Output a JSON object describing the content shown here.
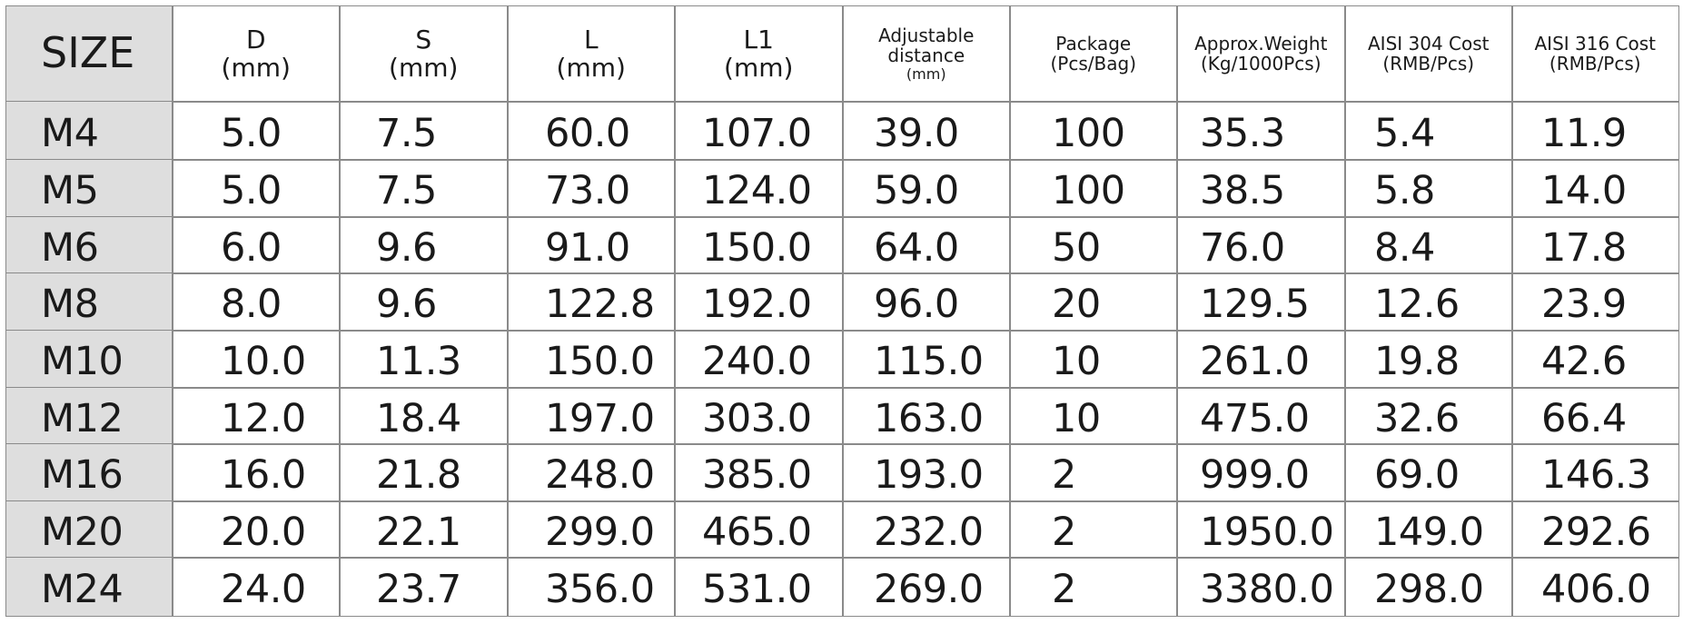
{
  "table": {
    "header": [
      [
        "SIZE"
      ],
      [
        "D",
        "(mm)"
      ],
      [
        "S",
        "(mm)"
      ],
      [
        "L",
        "(mm)"
      ],
      [
        "L1",
        "(mm)"
      ],
      [
        "Adjustable",
        "distance",
        "(mm)"
      ],
      [
        "Package",
        "(Pcs/Bag)"
      ],
      [
        "Approx.Weight",
        "(Kg/1000Pcs)"
      ],
      [
        "AISI 304 Cost",
        "(RMB/Pcs)"
      ],
      [
        "AISI 316 Cost",
        "(RMB/Pcs)"
      ]
    ],
    "rows": [
      [
        "M4",
        "5.0",
        "7.5",
        "60.0",
        "107.0",
        "39.0",
        "100",
        "35.3",
        "5.4",
        "11.9"
      ],
      [
        "M5",
        "5.0",
        "7.5",
        "73.0",
        "124.0",
        "59.0",
        "100",
        "38.5",
        "5.8",
        "14.0"
      ],
      [
        "M6",
        "6.0",
        "9.6",
        "91.0",
        "150.0",
        "64.0",
        "50",
        "76.0",
        "8.4",
        "17.8"
      ],
      [
        "M8",
        "8.0",
        "9.6",
        "122.8",
        "192.0",
        "96.0",
        "20",
        "129.5",
        "12.6",
        "23.9"
      ],
      [
        "M10",
        "10.0",
        "11.3",
        "150.0",
        "240.0",
        "115.0",
        "10",
        "261.0",
        "19.8",
        "42.6"
      ],
      [
        "M12",
        "12.0",
        "18.4",
        "197.0",
        "303.0",
        "163.0",
        "10",
        "475.0",
        "32.6",
        "66.4"
      ],
      [
        "M16",
        "16.0",
        "21.8",
        "248.0",
        "385.0",
        "193.0",
        "2",
        "999.0",
        "69.0",
        "146.3"
      ],
      [
        "M20",
        "20.0",
        "22.1",
        "299.0",
        "465.0",
        "232.0",
        "2",
        "1950.0",
        "149.0",
        "292.6"
      ],
      [
        "M24",
        "24.0",
        "23.7",
        "356.0",
        "531.0",
        "269.0",
        "2",
        "3380.0",
        "298.0",
        "406.0"
      ]
    ]
  }
}
